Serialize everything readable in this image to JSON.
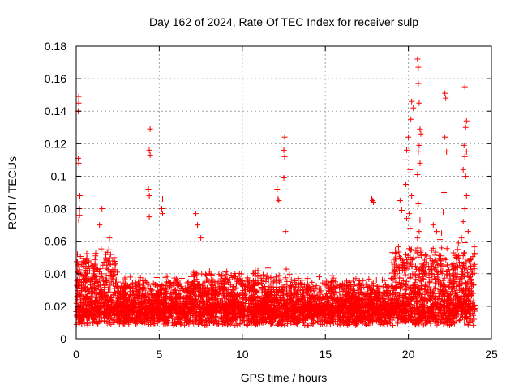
{
  "chart_data": {
    "type": "scatter",
    "title": "Day 162 of 2024, Rate Of TEC Index for receiver sulp",
    "xlabel": "GPS time / hours",
    "ylabel": "ROTI / TECUs",
    "xlim": [
      0,
      25
    ],
    "ylim": [
      0,
      0.18
    ],
    "x_ticks": [
      0,
      5,
      10,
      15,
      20,
      25
    ],
    "x_tick_labels": [
      "0",
      "5",
      "10",
      "15",
      "20",
      "25"
    ],
    "y_ticks": [
      0,
      0.02,
      0.04,
      0.06,
      0.08,
      0.1,
      0.12,
      0.14,
      0.16,
      0.18
    ],
    "y_tick_labels": [
      "0",
      "0.02",
      "0.04",
      "0.06",
      "0.08",
      "0.1",
      "0.12",
      "0.14",
      "0.16",
      "0.18"
    ],
    "grid": true,
    "marker": "+",
    "series": [
      {
        "name": "ROTI",
        "color": "#ff0000",
        "dense_band": {
          "x_range": [
            0,
            24
          ],
          "typical_range": [
            0.005,
            0.035
          ],
          "upper_envelope": 0.05
        },
        "points": [
          {
            "x": 0.15,
            "y": 0.149
          },
          {
            "x": 0.15,
            "y": 0.145
          },
          {
            "x": 0.12,
            "y": 0.14
          },
          {
            "x": 0.12,
            "y": 0.111
          },
          {
            "x": 0.15,
            "y": 0.108
          },
          {
            "x": 0.22,
            "y": 0.088
          },
          {
            "x": 0.18,
            "y": 0.086
          },
          {
            "x": 0.2,
            "y": 0.08
          },
          {
            "x": 0.2,
            "y": 0.076
          },
          {
            "x": 0.15,
            "y": 0.073
          },
          {
            "x": 1.4,
            "y": 0.07
          },
          {
            "x": 1.55,
            "y": 0.08
          },
          {
            "x": 2.0,
            "y": 0.062
          },
          {
            "x": 4.45,
            "y": 0.129
          },
          {
            "x": 4.4,
            "y": 0.116
          },
          {
            "x": 4.45,
            "y": 0.113
          },
          {
            "x": 4.35,
            "y": 0.092
          },
          {
            "x": 4.4,
            "y": 0.088
          },
          {
            "x": 4.4,
            "y": 0.075
          },
          {
            "x": 5.2,
            "y": 0.086
          },
          {
            "x": 5.15,
            "y": 0.08
          },
          {
            "x": 5.2,
            "y": 0.077
          },
          {
            "x": 7.2,
            "y": 0.077
          },
          {
            "x": 7.3,
            "y": 0.07
          },
          {
            "x": 7.5,
            "y": 0.062
          },
          {
            "x": 12.1,
            "y": 0.092
          },
          {
            "x": 12.15,
            "y": 0.086
          },
          {
            "x": 12.2,
            "y": 0.085
          },
          {
            "x": 12.55,
            "y": 0.124
          },
          {
            "x": 12.5,
            "y": 0.116
          },
          {
            "x": 12.55,
            "y": 0.112
          },
          {
            "x": 12.5,
            "y": 0.099
          },
          {
            "x": 12.6,
            "y": 0.066
          },
          {
            "x": 17.8,
            "y": 0.086
          },
          {
            "x": 17.85,
            "y": 0.085
          },
          {
            "x": 17.9,
            "y": 0.084
          },
          {
            "x": 19.5,
            "y": 0.085
          },
          {
            "x": 19.6,
            "y": 0.079
          },
          {
            "x": 20.0,
            "y": 0.124
          },
          {
            "x": 19.9,
            "y": 0.116
          },
          {
            "x": 19.8,
            "y": 0.11
          },
          {
            "x": 20.1,
            "y": 0.104
          },
          {
            "x": 19.85,
            "y": 0.095
          },
          {
            "x": 20.2,
            "y": 0.088
          },
          {
            "x": 20.05,
            "y": 0.077
          },
          {
            "x": 19.9,
            "y": 0.074
          },
          {
            "x": 20.1,
            "y": 0.068
          },
          {
            "x": 20.2,
            "y": 0.146
          },
          {
            "x": 20.3,
            "y": 0.142
          },
          {
            "x": 20.15,
            "y": 0.135
          },
          {
            "x": 20.55,
            "y": 0.172
          },
          {
            "x": 20.6,
            "y": 0.167
          },
          {
            "x": 20.6,
            "y": 0.157
          },
          {
            "x": 20.65,
            "y": 0.145
          },
          {
            "x": 20.7,
            "y": 0.129
          },
          {
            "x": 20.75,
            "y": 0.126
          },
          {
            "x": 20.65,
            "y": 0.119
          },
          {
            "x": 20.6,
            "y": 0.115
          },
          {
            "x": 20.7,
            "y": 0.108
          },
          {
            "x": 20.55,
            "y": 0.101
          },
          {
            "x": 20.6,
            "y": 0.083
          },
          {
            "x": 20.7,
            "y": 0.073
          },
          {
            "x": 20.65,
            "y": 0.066
          },
          {
            "x": 20.55,
            "y": 0.062
          },
          {
            "x": 21.5,
            "y": 0.07
          },
          {
            "x": 21.7,
            "y": 0.066
          },
          {
            "x": 21.9,
            "y": 0.061
          },
          {
            "x": 22.2,
            "y": 0.151
          },
          {
            "x": 22.25,
            "y": 0.148
          },
          {
            "x": 22.2,
            "y": 0.124
          },
          {
            "x": 22.3,
            "y": 0.115
          },
          {
            "x": 22.15,
            "y": 0.09
          },
          {
            "x": 22.1,
            "y": 0.078
          },
          {
            "x": 22.0,
            "y": 0.065
          },
          {
            "x": 23.4,
            "y": 0.155
          },
          {
            "x": 23.5,
            "y": 0.134
          },
          {
            "x": 23.45,
            "y": 0.13
          },
          {
            "x": 23.35,
            "y": 0.119
          },
          {
            "x": 23.5,
            "y": 0.115
          },
          {
            "x": 23.4,
            "y": 0.112
          },
          {
            "x": 23.3,
            "y": 0.104
          },
          {
            "x": 23.45,
            "y": 0.1
          },
          {
            "x": 23.5,
            "y": 0.088
          },
          {
            "x": 23.4,
            "y": 0.08
          },
          {
            "x": 23.3,
            "y": 0.072
          },
          {
            "x": 23.6,
            "y": 0.066
          },
          {
            "x": 23.2,
            "y": 0.062
          }
        ]
      }
    ]
  }
}
